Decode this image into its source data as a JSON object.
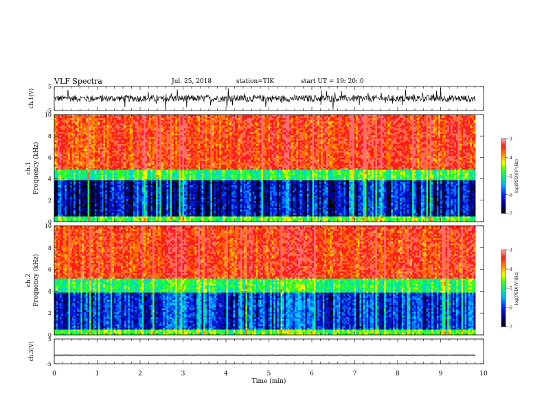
{
  "header": {
    "title": "VLF Spectra",
    "date": "Jul. 25, 2018",
    "station": "station=TIK",
    "start_ut": "start UT = 19: 20: 0"
  },
  "colors": {
    "scale": [
      "#000000",
      "#00007a",
      "#0018d8",
      "#0078ff",
      "#00d0ff",
      "#00e890",
      "#38ff20",
      "#e8ff00",
      "#ffd000",
      "#ff7000",
      "#ff1c1c",
      "#ff6e6e"
    ],
    "trace": "#000000"
  },
  "chart_data": [
    {
      "type": "line",
      "panel": "waveform-ch1",
      "ylabel": "ch.1(V)",
      "ylim": [
        -5,
        5
      ],
      "yticks": [
        "5",
        "-5"
      ],
      "xlim": [
        0,
        10
      ],
      "grid": false,
      "baseline_value": 0,
      "noise_amplitude": 1.4
    },
    {
      "type": "heatmap",
      "panel": "spectrogram-ch1",
      "ylabel_line1": "ch.1",
      "ylabel_line2": "Frequency (kHz)",
      "ylim": [
        0,
        10
      ],
      "yticks": [
        "0",
        "2",
        "4",
        "6",
        "8",
        "10"
      ],
      "xlim": [
        0,
        9.83
      ],
      "colorbar": {
        "label": "log(PSD)(V²/Hz)",
        "ticks": [
          "-3",
          "-4",
          "-5",
          "-6",
          "-7"
        ],
        "range": [
          -7,
          -3
        ]
      },
      "bands": [
        {
          "freq_khz": [
            0,
            0.5
          ],
          "log_psd": -4.8
        },
        {
          "freq_khz": [
            0.5,
            3.8
          ],
          "log_psd": -6.3
        },
        {
          "freq_khz": [
            3.8,
            4.8
          ],
          "log_psd": -5.0
        },
        {
          "freq_khz": [
            4.8,
            10
          ],
          "log_psd": -3.6
        }
      ]
    },
    {
      "type": "heatmap",
      "panel": "spectrogram-ch2",
      "ylabel_line1": "ch.2",
      "ylabel_line2": "Frequency (kHz)",
      "ylim": [
        0,
        10
      ],
      "yticks": [
        "0",
        "2",
        "4",
        "6",
        "8",
        "10"
      ],
      "xlim": [
        0,
        9.83
      ],
      "colorbar": {
        "label": "log(PSD)(V²/Hz)",
        "ticks": [
          "-3",
          "-4",
          "-5",
          "-6",
          "-7"
        ],
        "range": [
          -7,
          -3
        ]
      },
      "bands": [
        {
          "freq_khz": [
            0,
            0.5
          ],
          "log_psd": -4.8
        },
        {
          "freq_khz": [
            0.5,
            3.8
          ],
          "log_psd": -6.1
        },
        {
          "freq_khz": [
            3.8,
            5.2
          ],
          "log_psd": -5.0
        },
        {
          "freq_khz": [
            5.2,
            10
          ],
          "log_psd": -3.6
        }
      ]
    },
    {
      "type": "line",
      "panel": "waveform-ch3",
      "ylabel": "ch.3(V)",
      "ylim": [
        -5,
        5
      ],
      "yticks": [
        "5",
        "-5"
      ],
      "xlim": [
        0,
        10
      ],
      "grid": false,
      "baseline_value": -1.5,
      "noise_amplitude": 0.05
    }
  ],
  "x_axis": {
    "label": "Time (min)",
    "ticks": [
      "0",
      "1",
      "2",
      "3",
      "4",
      "5",
      "6",
      "7",
      "8",
      "9",
      "10"
    ]
  }
}
